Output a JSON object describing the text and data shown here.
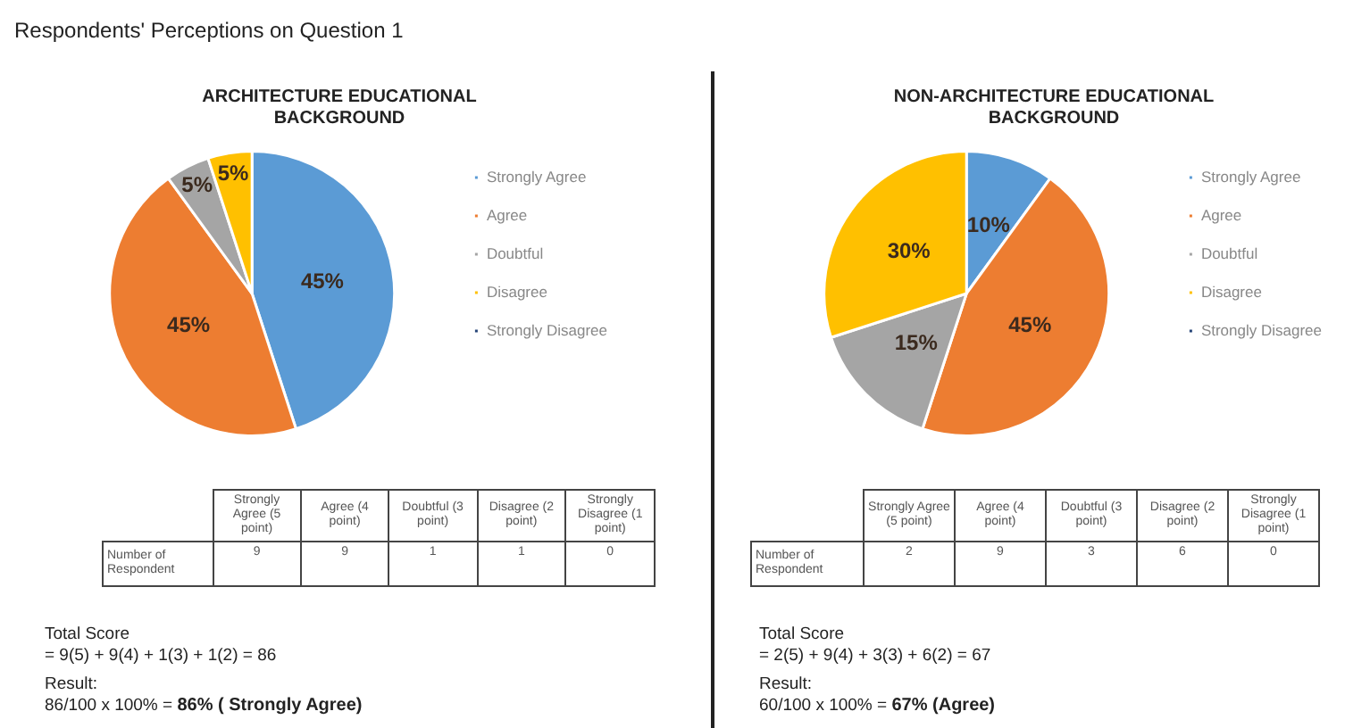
{
  "chart_data": [
    {
      "type": "pie",
      "title": "ARCHITECTURE EDUCATIONAL BACKGROUND",
      "categories": [
        "Strongly Agree",
        "Agree",
        "Doubtful",
        "Disagree",
        "Strongly Disagree"
      ],
      "values": [
        45,
        45,
        5,
        5,
        0
      ],
      "value_labels": [
        "45%",
        "45%",
        "5%",
        "5%",
        null
      ],
      "colors": [
        "#5b9bd5",
        "#ed7d31",
        "#a5a5a5",
        "#ffc000",
        "#264478"
      ],
      "legend": "right",
      "annotations": [
        "Respondents' Perceptions on Question 1",
        "Strongly Agree (5 point)",
        "Agree (4 point)",
        "Doubtful (3 point)",
        "Disagree (2 point)",
        "Strongly Disagree (1 point)",
        "Number of Respondent",
        "9",
        "9",
        "1",
        "1",
        "0",
        "Total Score",
        "= 9(5) + 9(4) + 1(3) + 1(2) = 86",
        "Result:",
        "86/100 x 100% = ",
        "86% ( Strongly Agree)"
      ]
    },
    {
      "type": "pie",
      "title": "NON-ARCHITECTURE EDUCATIONAL BACKGROUND",
      "categories": [
        "Strongly Agree",
        "Agree",
        "Doubtful",
        "Disagree",
        "Strongly Disagree"
      ],
      "values": [
        10,
        45,
        15,
        30,
        0
      ],
      "value_labels": [
        "10%",
        "45%",
        "15%",
        "30%",
        null
      ],
      "colors": [
        "#5b9bd5",
        "#ed7d31",
        "#a5a5a5",
        "#ffc000",
        "#264478"
      ],
      "legend": "right",
      "annotations": [
        "Strongly Agree (5 point)",
        "Agree (4 point)",
        "Doubtful (3 point)",
        "Disagree (2 point)",
        "Strongly Disagree (1 point)",
        "Number of Respondent",
        "2",
        "9",
        "3",
        "6",
        "0",
        "Total Score",
        "= 2(5) + 9(4) + 3(3) + 6(2) = 67",
        "Result:",
        "60/100 x 100% = ",
        "67% (Agree)"
      ]
    }
  ]
}
